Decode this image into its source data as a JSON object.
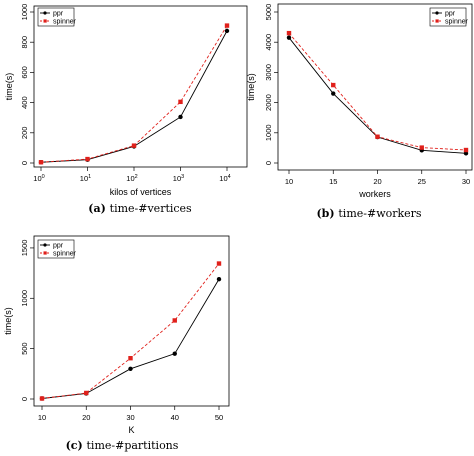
{
  "chart_data": [
    {
      "type": "line",
      "caption_label": "(a)",
      "caption_text": "time-#vertices",
      "xlabel": "kilos of vertices",
      "ylabel": "time(s)",
      "x_scale": "log10",
      "x": [
        1,
        10,
        100,
        1000,
        10000
      ],
      "xticks": [
        1,
        10,
        100,
        1000,
        10000
      ],
      "xtick_labels": [
        {
          "base": "10",
          "exp": "0"
        },
        {
          "base": "10",
          "exp": "1"
        },
        {
          "base": "10",
          "exp": "2"
        },
        {
          "base": "10",
          "exp": "3"
        },
        {
          "base": "10",
          "exp": "4"
        }
      ],
      "ylim": [
        0,
        1000
      ],
      "yticks": [
        0,
        200,
        400,
        600,
        800,
        1000
      ],
      "legend_position": "top-left",
      "series": [
        {
          "name": "ppr",
          "values": [
            5,
            22,
            110,
            305,
            875
          ],
          "color": "#000000",
          "dash": "solid"
        },
        {
          "name": "spinner",
          "values": [
            5,
            26,
            115,
            405,
            910
          ],
          "color": "#e0201b",
          "dash": "dashed"
        }
      ]
    },
    {
      "type": "line",
      "caption_label": "(b)",
      "caption_text": "time-#workers",
      "xlabel": "workers",
      "ylabel": "time(s)",
      "x_scale": "linear",
      "x": [
        10,
        15,
        20,
        25,
        30
      ],
      "xticks": [
        10,
        15,
        20,
        25,
        30
      ],
      "xlim": [
        10,
        30
      ],
      "ylim": [
        0,
        5000
      ],
      "yticks": [
        0,
        1000,
        2000,
        3000,
        4000,
        5000
      ],
      "legend_position": "top-right",
      "series": [
        {
          "name": "ppr",
          "values": [
            4150,
            2300,
            860,
            420,
            320
          ],
          "color": "#000000",
          "dash": "solid"
        },
        {
          "name": "spinner",
          "values": [
            4300,
            2580,
            870,
            510,
            430
          ],
          "color": "#e0201b",
          "dash": "dashed"
        }
      ]
    },
    {
      "type": "line",
      "caption_label": "(c)",
      "caption_text": "time-#partitions",
      "xlabel": "K",
      "ylabel": "time(s)",
      "x_scale": "linear",
      "x": [
        10,
        20,
        30,
        40,
        50
      ],
      "xticks": [
        10,
        20,
        30,
        40,
        50
      ],
      "xlim": [
        10,
        50
      ],
      "ylim": [
        0,
        1400
      ],
      "yticks": [
        0,
        500,
        1000,
        1500
      ],
      "legend_position": "top-left",
      "series": [
        {
          "name": "ppr",
          "values": [
            5,
            55,
            300,
            450,
            1190
          ],
          "color": "#000000",
          "dash": "solid"
        },
        {
          "name": "spinner",
          "values": [
            5,
            60,
            405,
            780,
            1345
          ],
          "color": "#e0201b",
          "dash": "dashed"
        }
      ]
    }
  ]
}
